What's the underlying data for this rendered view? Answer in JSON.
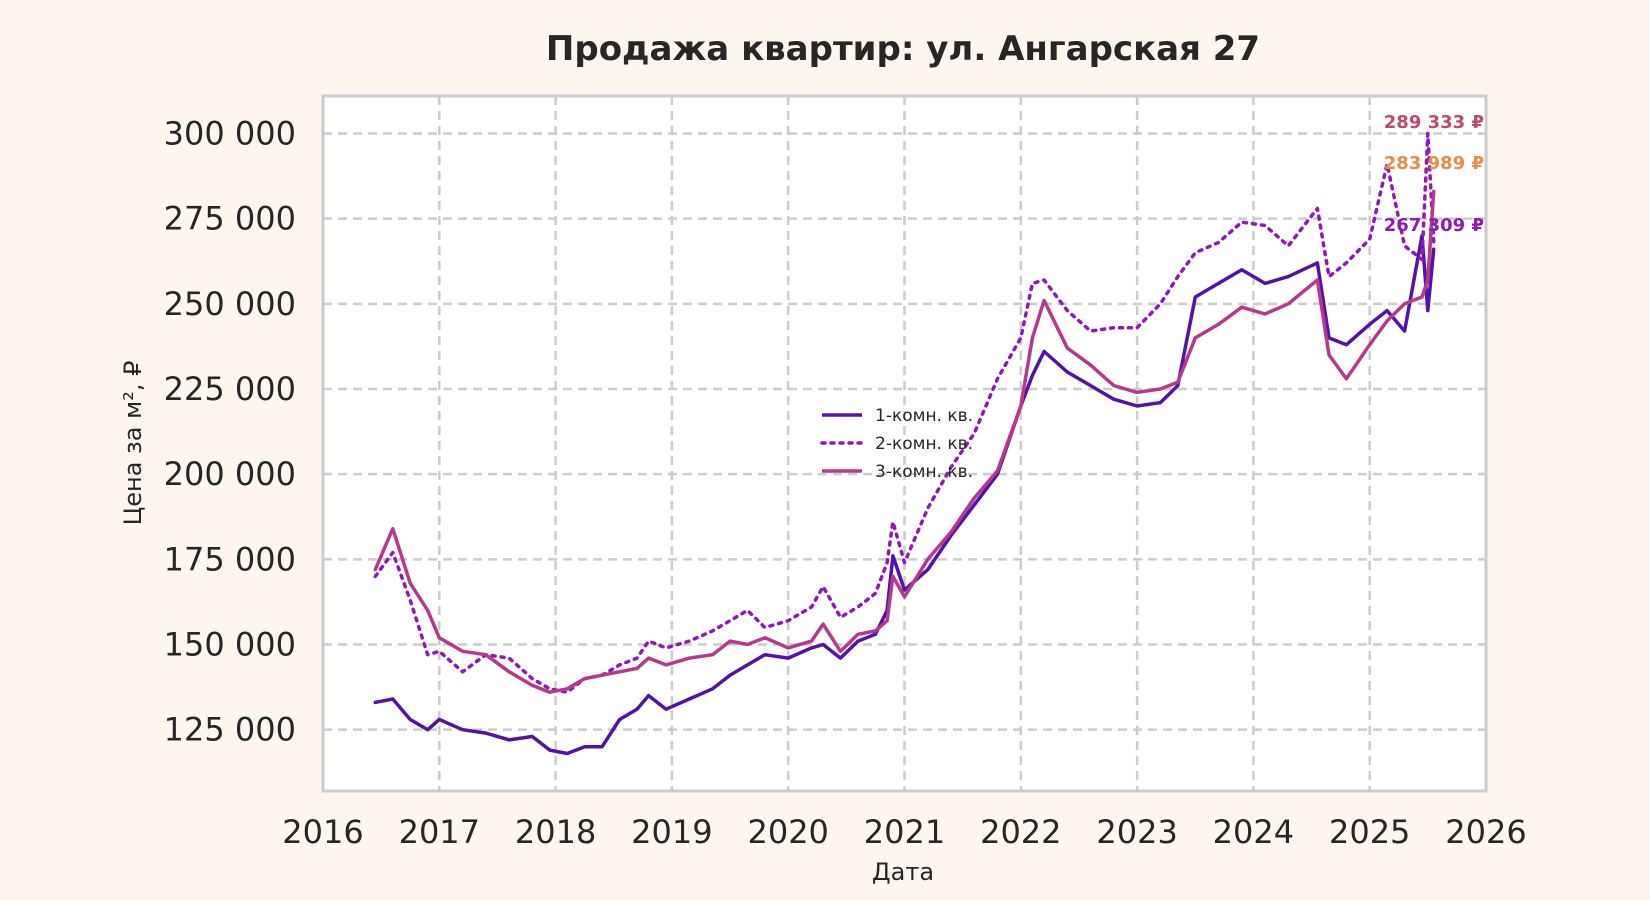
{
  "chart_data": {
    "type": "line",
    "title": "Продажа квартир: ул. Ангарская 27",
    "xlabel": "Дата",
    "ylabel": "Цена за м², ₽",
    "xlim": [
      2016,
      2026
    ],
    "ylim": [
      107000,
      311000
    ],
    "x_ticks": [
      {
        "value": 2016,
        "label": "2016"
      },
      {
        "value": 2017,
        "label": "2017"
      },
      {
        "value": 2018,
        "label": "2018"
      },
      {
        "value": 2019,
        "label": "2019"
      },
      {
        "value": 2020,
        "label": "2020"
      },
      {
        "value": 2021,
        "label": "2021"
      },
      {
        "value": 2022,
        "label": "2022"
      },
      {
        "value": 2023,
        "label": "2023"
      },
      {
        "value": 2024,
        "label": "2024"
      },
      {
        "value": 2025,
        "label": "2025"
      },
      {
        "value": 2026,
        "label": "2026"
      }
    ],
    "y_ticks": [
      {
        "value": 125000,
        "label": "125 000"
      },
      {
        "value": 150000,
        "label": "150 000"
      },
      {
        "value": 175000,
        "label": "175 000"
      },
      {
        "value": 200000,
        "label": "200 000"
      },
      {
        "value": 225000,
        "label": "225 000"
      },
      {
        "value": 250000,
        "label": "250 000"
      },
      {
        "value": 275000,
        "label": "275 000"
      },
      {
        "value": 300000,
        "label": "300 000"
      }
    ],
    "grid": true,
    "legend_position": "center",
    "x": [
      2016.45,
      2016.6,
      2016.75,
      2016.9,
      2017.0,
      2017.2,
      2017.4,
      2017.6,
      2017.8,
      2017.95,
      2018.1,
      2018.25,
      2018.4,
      2018.55,
      2018.7,
      2018.8,
      2018.95,
      2019.15,
      2019.35,
      2019.5,
      2019.65,
      2019.8,
      2020.0,
      2020.2,
      2020.3,
      2020.45,
      2020.6,
      2020.75,
      2020.85,
      2020.9,
      2021.0,
      2021.2,
      2021.4,
      2021.6,
      2021.8,
      2022.0,
      2022.1,
      2022.2,
      2022.4,
      2022.6,
      2022.8,
      2023.0,
      2023.2,
      2023.35,
      2023.5,
      2023.7,
      2023.9,
      2024.1,
      2024.3,
      2024.55,
      2024.65,
      2024.8,
      2025.0,
      2025.15,
      2025.3,
      2025.45,
      2025.5,
      2025.55
    ],
    "series": [
      {
        "name": "1-комн. кв.",
        "color": "#5312a8",
        "style": "solid",
        "values": [
          133000,
          134000,
          128000,
          125000,
          128000,
          125000,
          124000,
          122000,
          123000,
          119000,
          118000,
          120000,
          120000,
          128000,
          131000,
          135000,
          131000,
          134000,
          137000,
          141000,
          144000,
          147000,
          146000,
          149000,
          150000,
          146000,
          151000,
          153000,
          160000,
          176000,
          166000,
          172000,
          182000,
          191000,
          200000,
          220000,
          229000,
          236000,
          230000,
          226000,
          222000,
          220000,
          221000,
          226000,
          252000,
          256000,
          260000,
          256000,
          258000,
          262000,
          240000,
          238000,
          244000,
          248000,
          242000,
          270000,
          248000,
          266000
        ]
      },
      {
        "name": "2-комн. кв.",
        "color": "#8e1cb0",
        "style": "dotted",
        "values": [
          170000,
          177000,
          163000,
          147000,
          148000,
          142000,
          147000,
          146000,
          140000,
          137000,
          136000,
          140000,
          141000,
          144000,
          146000,
          151000,
          149000,
          151000,
          154000,
          157000,
          160000,
          155000,
          157000,
          161000,
          167000,
          158000,
          161000,
          165000,
          174000,
          186000,
          174000,
          190000,
          202000,
          212000,
          228000,
          240000,
          256000,
          257000,
          248000,
          242000,
          243000,
          243000,
          250000,
          258000,
          265000,
          268000,
          274000,
          273000,
          267000,
          278000,
          258000,
          262000,
          269000,
          291000,
          267000,
          263000,
          300000,
          268000
        ]
      },
      {
        "name": "3-комн. кв.",
        "color": "#b5398c",
        "style": "solid",
        "values": [
          172000,
          184000,
          168000,
          160000,
          152000,
          148000,
          147000,
          142000,
          138000,
          136000,
          137000,
          140000,
          141000,
          142000,
          143000,
          146000,
          144000,
          146000,
          147000,
          151000,
          150000,
          152000,
          149000,
          151000,
          156000,
          148000,
          153000,
          154000,
          157000,
          170000,
          164000,
          175000,
          183000,
          193000,
          201000,
          220000,
          240000,
          251000,
          237000,
          232000,
          226000,
          224000,
          225000,
          227000,
          240000,
          244000,
          249000,
          247000,
          250000,
          257000,
          235000,
          228000,
          238000,
          245000,
          250000,
          252000,
          257000,
          283000
        ]
      }
    ],
    "end_labels": [
      {
        "text": "289 333 ₽",
        "color": "#c24a6e"
      },
      {
        "text": "283 989 ₽",
        "color": "#e38d45"
      },
      {
        "text": "267 309 ₽",
        "color": "#8e1cb0"
      }
    ]
  }
}
